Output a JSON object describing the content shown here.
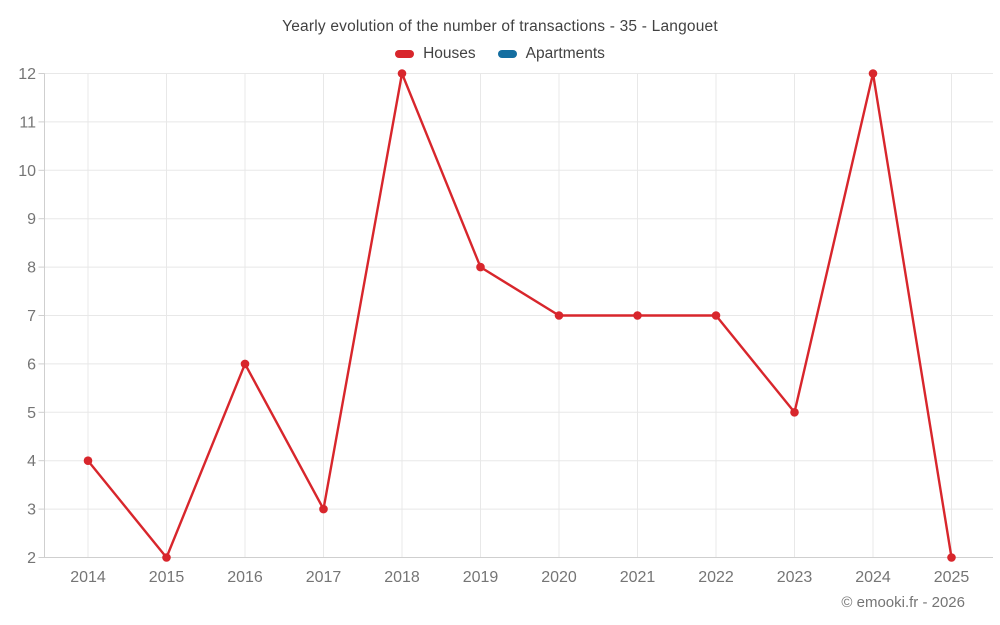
{
  "title": "Yearly evolution of the number of transactions - 35 - Langouet",
  "legend": {
    "items": [
      {
        "label": "Houses",
        "color": "#d8262c"
      },
      {
        "label": "Apartments",
        "color": "#146ea0"
      }
    ]
  },
  "copyright": "© emooki.fr - 2026",
  "colors": {
    "grid": "#e8e8e8",
    "axis": "#cfcfcf",
    "tick_label": "#757575",
    "title": "#424242",
    "houses": "#d8262c",
    "apartments": "#146ea0"
  },
  "chart_data": {
    "type": "line",
    "title": "Yearly evolution of the number of transactions - 35 - Langouet",
    "x": [
      2014,
      2015,
      2016,
      2017,
      2018,
      2019,
      2020,
      2021,
      2022,
      2023,
      2024,
      2025
    ],
    "series": [
      {
        "name": "Houses",
        "color": "#d8262c",
        "values": [
          4,
          2,
          6,
          3,
          12,
          8,
          7,
          7,
          7,
          5,
          12,
          2
        ]
      },
      {
        "name": "Apartments",
        "color": "#146ea0",
        "values": []
      }
    ],
    "xlabel": "",
    "ylabel": "",
    "ylim": [
      2,
      12
    ],
    "yticks": [
      2,
      3,
      4,
      5,
      6,
      7,
      8,
      9,
      10,
      11,
      12
    ],
    "grid": true,
    "legend_position": "top",
    "marker": "circle",
    "annotation": "© emooki.fr - 2026"
  }
}
